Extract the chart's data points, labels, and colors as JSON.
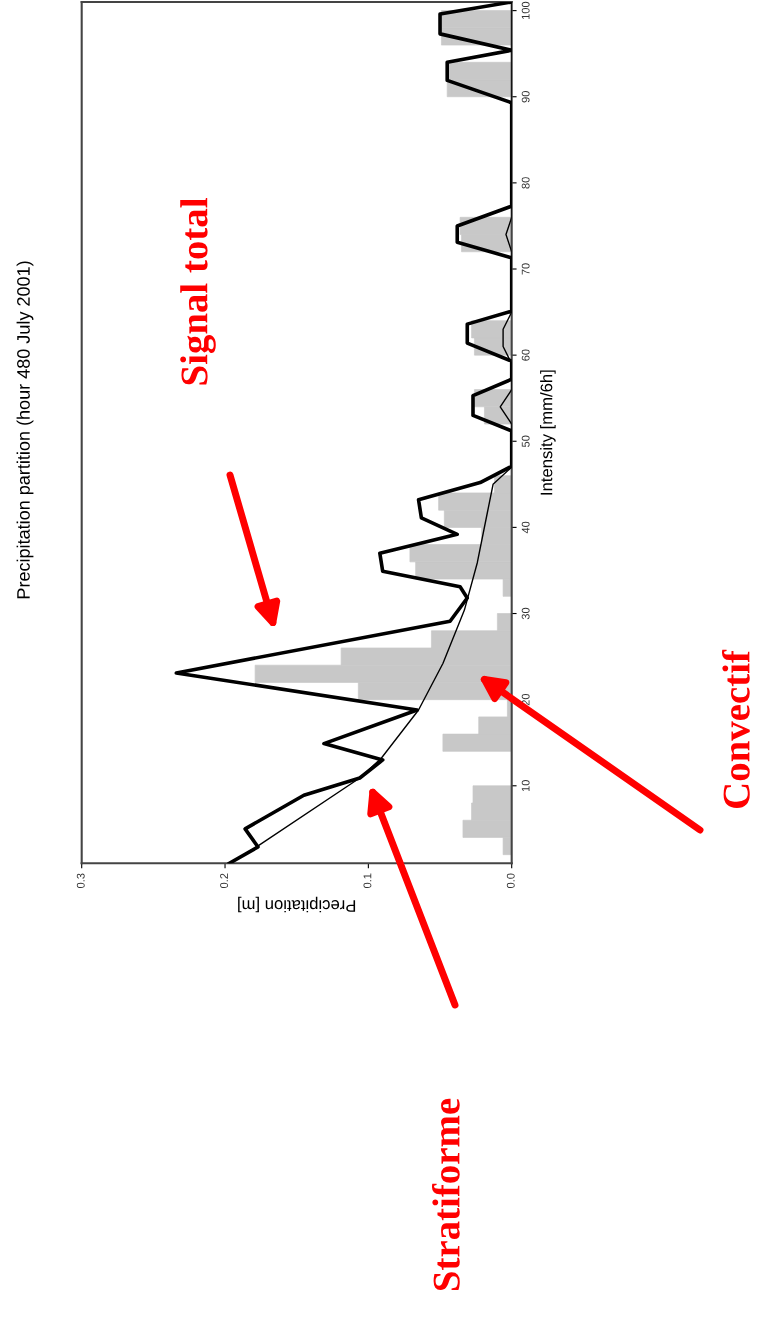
{
  "chart_data": {
    "type": "histogram",
    "title": "Precipitation partition (hour 480 July 2001)",
    "orientation": "horizontal",
    "xlabel": "Precipitation [m]",
    "ylabel": "Intensity [mm/6h]",
    "xlim": [
      0.3,
      0
    ],
    "xticks": [
      0.3,
      0.2,
      0.1,
      {
        "value": 0,
        "label": "0.0"
      }
    ],
    "ylim": [
      1,
      101
    ],
    "yticks": [
      10,
      20,
      30,
      40,
      50,
      60,
      70,
      80,
      90,
      100
    ],
    "grid": false,
    "series": [
      {
        "color": "#c8c8c8",
        "bins": [
          2,
          4,
          6,
          8,
          10,
          12,
          14,
          16,
          18,
          20,
          22,
          24,
          26,
          28,
          30,
          32,
          34,
          36,
          38,
          40,
          42,
          44,
          46,
          48,
          50,
          52,
          54,
          56,
          58,
          60,
          62,
          64,
          66,
          68,
          70,
          72,
          74,
          76,
          78,
          80,
          82,
          84,
          86,
          88,
          90,
          92,
          94,
          96,
          98,
          100
        ],
        "values": [
          0.006,
          0.034,
          0.028,
          0.027,
          0,
          0,
          0.048,
          0.023,
          0.003,
          0.107,
          0.179,
          0.119,
          0.056,
          0.01,
          0,
          0.006,
          0.067,
          0.071,
          0.021,
          0.047,
          0.051,
          0.012,
          0,
          0,
          0,
          0.019,
          0.026,
          0,
          0,
          0.026,
          0.028,
          0,
          0,
          0,
          0,
          0.035,
          0.036,
          0,
          0,
          0,
          0,
          0,
          0,
          0,
          0.045,
          0.045,
          0,
          0.049,
          0.049
        ]
      },
      {
        "type": "line",
        "color": "#000000",
        "x": [
          1.0,
          2.9,
          5.0,
          8.9,
          10.9,
          13.0,
          14.9,
          18.8,
          23.1,
          29.1,
          31.8,
          33.1,
          34.9,
          37.0,
          39.2,
          41.1,
          43.2,
          45.2,
          47.1,
          51.2,
          53.0,
          55.3,
          57.2,
          59.3,
          61.4,
          63.6,
          65.1,
          71.3,
          73.1,
          75.0,
          77.3,
          89.3,
          91.9,
          94.0,
          95.4,
          97.3,
          99.6,
          101
        ],
        "values": [
          0.197,
          0.177,
          0.186,
          0.145,
          0.106,
          0.09,
          0.131,
          0.066,
          0.234,
          0.043,
          0.031,
          0.036,
          0.09,
          0.092,
          0.038,
          0.063,
          0.065,
          0.022,
          0,
          0,
          0.027,
          0.027,
          0,
          0,
          0.031,
          0.031,
          0,
          0,
          0.038,
          0.038,
          0,
          0,
          0.045,
          0.045,
          0,
          0.05,
          0.05,
          0
        ]
      },
      {
        "type": "line",
        "color": "#000000",
        "x": [
          1.0,
          2.9,
          10.9,
          13.2,
          18.8,
          24.2,
          30.4,
          35.9,
          41.7,
          45.0,
          47.0,
          52,
          54,
          56,
          59,
          61,
          63,
          65,
          72,
          74,
          76,
          101
        ],
        "values": [
          0.197,
          0.178,
          0.106,
          0.091,
          0.065,
          0.048,
          0.033,
          0.024,
          0.017,
          0.013,
          0,
          0,
          0.008,
          0,
          0,
          0.006,
          0.006,
          0,
          0,
          0.004,
          0,
          0
        ]
      }
    ],
    "annotations": [
      "Signal total",
      "Convectif",
      "Stratiforme"
    ]
  }
}
